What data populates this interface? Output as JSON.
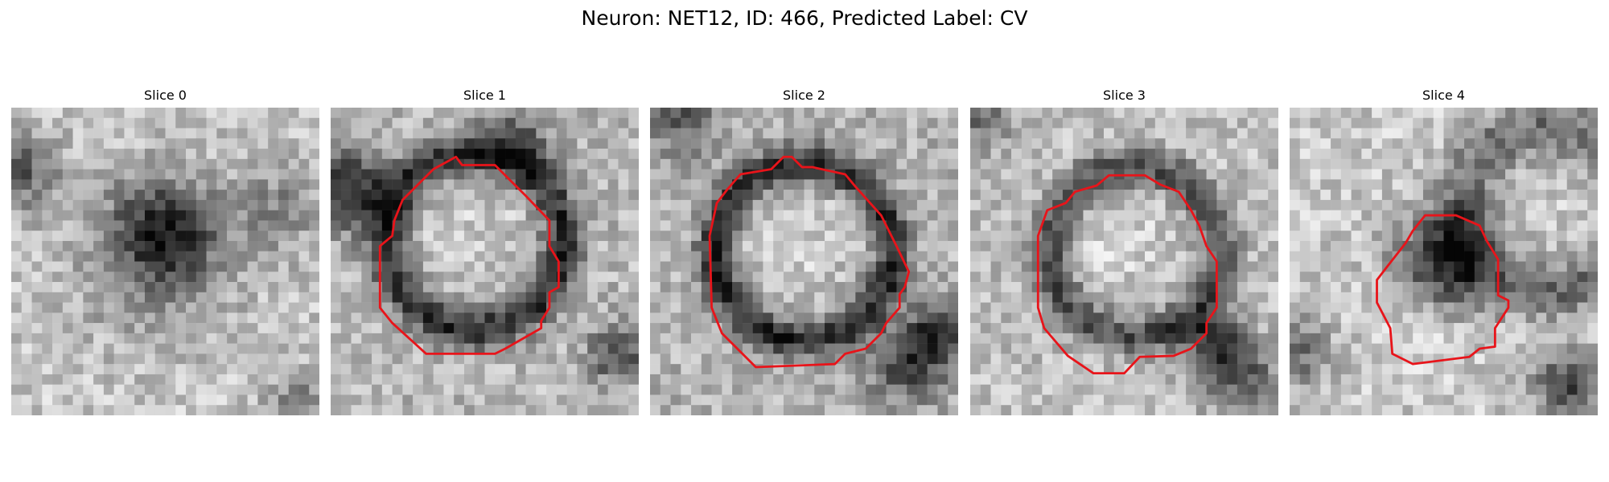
{
  "figure": {
    "title": "Neuron: NET12, ID: 466, Predicted Label: CV"
  },
  "panels": [
    {
      "title": "Slice 0",
      "has_outline": false
    },
    {
      "title": "Slice 1",
      "has_outline": true
    },
    {
      "title": "Slice 2",
      "has_outline": true
    },
    {
      "title": "Slice 3",
      "has_outline": true
    },
    {
      "title": "Slice 4",
      "has_outline": true
    }
  ],
  "colors": {
    "outline": "#e8141a",
    "colormap": "grayscale"
  }
}
